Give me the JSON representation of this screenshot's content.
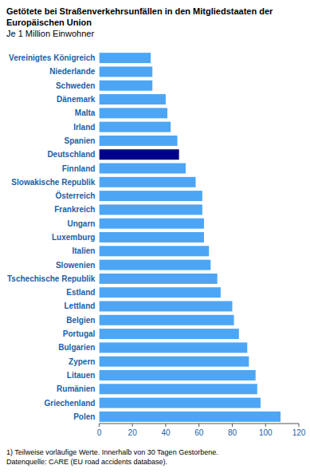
{
  "chart_data": {
    "type": "bar",
    "orientation": "horizontal",
    "title": "Getötete bei Straßenverkehrsunfällen in den Mitgliedstaaten der Europäischen Union",
    "subtitle": "Je 1 Million Einwohner",
    "categories": [
      "Vereinigtes Königreich",
      "Niederlande",
      "Schweden",
      "Dänemark",
      "Malta",
      "Irland",
      "Spanien",
      "Deutschland",
      "Finnland",
      "Slowakische Republik",
      "Österreich",
      "Frankreich",
      "Ungarn",
      "Luxemburg",
      "Italien",
      "Slowenien",
      "Tschechische Republik",
      "Estland",
      "Lettland",
      "Belgien",
      "Portugal",
      "Bulgarien",
      "Zypern",
      "Litauen",
      "Rumänien",
      "Griechenland",
      "Polen"
    ],
    "values": [
      31,
      32,
      32,
      40,
      41,
      43,
      47,
      48,
      52,
      58,
      62,
      62,
      63,
      63,
      66,
      67,
      71,
      73,
      80,
      81,
      84,
      89,
      90,
      94,
      95,
      97,
      109
    ],
    "colors": [
      "#4da6f5",
      "#4da6f5",
      "#4da6f5",
      "#4da6f5",
      "#4da6f5",
      "#4da6f5",
      "#4da6f5",
      "#00008b",
      "#4da6f5",
      "#4da6f5",
      "#4da6f5",
      "#4da6f5",
      "#4da6f5",
      "#4da6f5",
      "#4da6f5",
      "#4da6f5",
      "#4da6f5",
      "#4da6f5",
      "#4da6f5",
      "#4da6f5",
      "#4da6f5",
      "#4da6f5",
      "#4da6f5",
      "#4da6f5",
      "#4da6f5",
      "#4da6f5",
      "#4da6f5"
    ],
    "xlim": [
      0,
      120
    ],
    "xticks": [
      0,
      20,
      40,
      60,
      80,
      100,
      120
    ],
    "grid": false,
    "annotations": [
      "1) Teilweise vorläufige Werte. Innerhalb von 30 Tagen Gestorbene.",
      "Datenquelle: CARE (EU road accidents database)."
    ]
  }
}
